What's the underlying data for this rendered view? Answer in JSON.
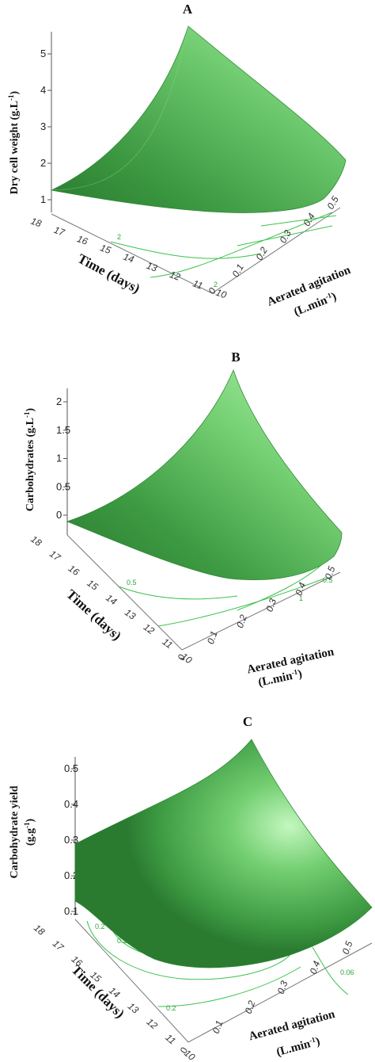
{
  "chart_data": [
    {
      "type": "surface",
      "panel_label": "A",
      "title": "",
      "zlabel": "Dry cell weight (g.L-1)",
      "xlabel": "Time  (days)",
      "ylabel": "Aerated agitation",
      "ylabel_line2": "(L.min-1)",
      "x_ticks": [
        "18",
        "17",
        "16",
        "15",
        "14",
        "13",
        "12",
        "11",
        "10"
      ],
      "y_ticks": [
        "0",
        "0.1",
        "0.2",
        "0.3",
        "0.4",
        "0.5"
      ],
      "z_ticks": [
        "1",
        "2",
        "3",
        "4",
        "5"
      ],
      "z_range": [
        0.8,
        5.6
      ],
      "corner_z": {
        "t18_a0": 1.3,
        "t10_a0": 1.0,
        "t18_a05": 5.6,
        "t10_a05": 2.2
      },
      "contour_labels": [
        "2",
        "2"
      ],
      "surface_color": "#3f9f46"
    },
    {
      "type": "surface",
      "panel_label": "B",
      "title": "",
      "zlabel": "Carbohydrates (g.L-1)",
      "xlabel": "Time  (days)",
      "ylabel": "Aerated agitation",
      "ylabel_line2": "(L.min-1)",
      "x_ticks": [
        "18",
        "17",
        "16",
        "15",
        "14",
        "13",
        "12",
        "11",
        "10"
      ],
      "y_ticks": [
        "0",
        "0.1",
        "0.2",
        "0.3",
        "0.4",
        "0.5"
      ],
      "z_ticks": [
        "0",
        "0.5",
        "1",
        "1.5",
        "2"
      ],
      "z_range": [
        -0.1,
        2.3
      ],
      "corner_z": {
        "t18_a0": 0.25,
        "t10_a0": -0.05,
        "t18_a05": 2.3,
        "t10_a05": 0.3
      },
      "contour_labels": [
        "0.5",
        "1",
        "0.5"
      ],
      "surface_color": "#3f9f46"
    },
    {
      "type": "surface",
      "panel_label": "C",
      "title": "",
      "zlabel": "Carbohydrate yield",
      "zlabel_line2": "(g.g-1)",
      "xlabel": "Time  (days)",
      "ylabel": "Aerated agitation",
      "ylabel_line2": "(L.min-1)",
      "x_ticks": [
        "18",
        "17",
        "16",
        "15",
        "14",
        "13",
        "12",
        "11",
        "10"
      ],
      "y_ticks": [
        "0",
        "0.1",
        "0.2",
        "0.3",
        "0.4",
        "0.5"
      ],
      "z_ticks": [
        "0.1",
        "0.2",
        "0.3",
        "0.4",
        "0.5"
      ],
      "z_range": [
        0.05,
        0.55
      ],
      "corner_z": {
        "t18_a0": 0.27,
        "t10_a0": 0.08,
        "t18_a05": 0.55,
        "t10_a05": 0.16
      },
      "contour_labels": [
        "0.2",
        "0.2",
        "0.06",
        "0.2"
      ],
      "surface_color": "#3f9f46"
    }
  ]
}
